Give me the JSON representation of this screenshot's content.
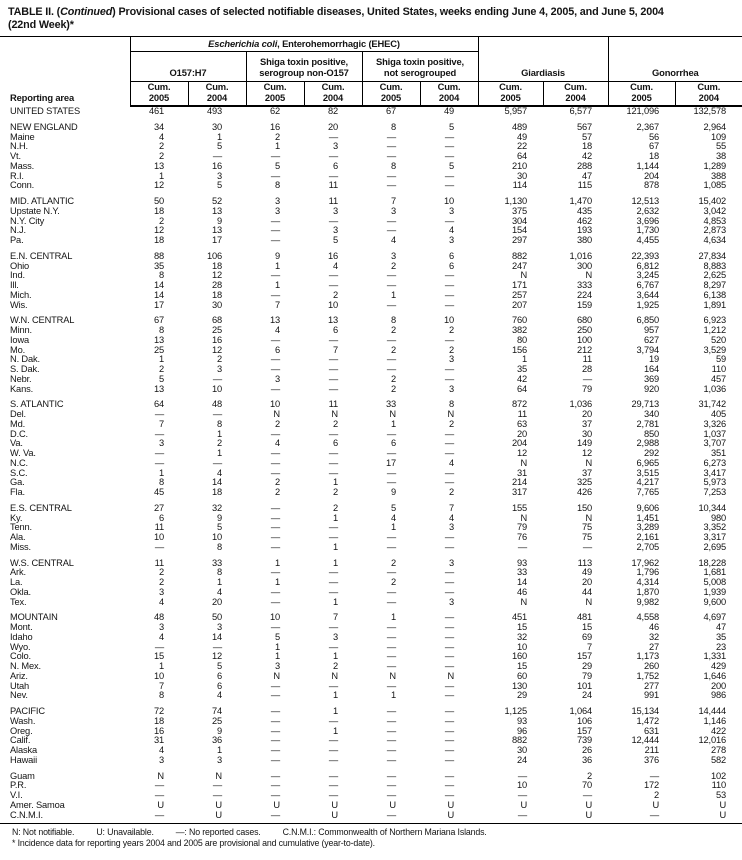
{
  "title": {
    "part1": "TABLE II. (",
    "part2": "Continued",
    "part3": ") Provisional cases of selected notifiable diseases, United States, weeks ending June 4, 2005, and June 5, 2004",
    "line2": "(22nd Week)*"
  },
  "header": {
    "reporting_area": "Reporting area",
    "ehec_italic": "Escherichia coli",
    "ehec_rest": ", Enterohemorrhagic (EHEC)",
    "groups": {
      "o157": "O157:H7",
      "shiga_non_o157": "Shiga toxin positive,\nserogroup non-O157",
      "shiga_not_serogrouped": "Shiga toxin positive,\nnot serogrouped",
      "giardiasis": "Giardiasis",
      "gonorrhea": "Gonorrhea"
    },
    "cum_2005": "Cum.\n2005",
    "cum_2004": "Cum.\n2004"
  },
  "rows": [
    {
      "area": "UNITED STATES",
      "section_start": false,
      "values": [
        "461",
        "493",
        "62",
        "82",
        "67",
        "49",
        "5,957",
        "6,577",
        "121,096",
        "132,578"
      ]
    },
    {
      "area": "NEW ENGLAND",
      "section_start": true,
      "values": [
        "34",
        "30",
        "16",
        "20",
        "8",
        "5",
        "489",
        "567",
        "2,367",
        "2,964"
      ]
    },
    {
      "area": "Maine",
      "section_start": false,
      "values": [
        "4",
        "1",
        "2",
        "—",
        "—",
        "—",
        "49",
        "57",
        "56",
        "109"
      ]
    },
    {
      "area": "N.H.",
      "section_start": false,
      "values": [
        "2",
        "5",
        "1",
        "3",
        "—",
        "—",
        "22",
        "18",
        "67",
        "55"
      ]
    },
    {
      "area": "Vt.",
      "section_start": false,
      "values": [
        "2",
        "—",
        "—",
        "—",
        "—",
        "—",
        "64",
        "42",
        "18",
        "38"
      ]
    },
    {
      "area": "Mass.",
      "section_start": false,
      "values": [
        "13",
        "16",
        "5",
        "6",
        "8",
        "5",
        "210",
        "288",
        "1,144",
        "1,289"
      ]
    },
    {
      "area": "R.I.",
      "section_start": false,
      "values": [
        "1",
        "3",
        "—",
        "—",
        "—",
        "—",
        "30",
        "47",
        "204",
        "388"
      ]
    },
    {
      "area": "Conn.",
      "section_start": false,
      "values": [
        "12",
        "5",
        "8",
        "11",
        "—",
        "—",
        "114",
        "115",
        "878",
        "1,085"
      ]
    },
    {
      "area": "MID. ATLANTIC",
      "section_start": true,
      "values": [
        "50",
        "52",
        "3",
        "11",
        "7",
        "10",
        "1,130",
        "1,470",
        "12,513",
        "15,402"
      ]
    },
    {
      "area": "Upstate N.Y.",
      "section_start": false,
      "values": [
        "18",
        "13",
        "3",
        "3",
        "3",
        "3",
        "375",
        "435",
        "2,632",
        "3,042"
      ]
    },
    {
      "area": "N.Y. City",
      "section_start": false,
      "values": [
        "2",
        "9",
        "—",
        "—",
        "—",
        "—",
        "304",
        "462",
        "3,696",
        "4,853"
      ]
    },
    {
      "area": "N.J.",
      "section_start": false,
      "values": [
        "12",
        "13",
        "—",
        "3",
        "—",
        "4",
        "154",
        "193",
        "1,730",
        "2,873"
      ]
    },
    {
      "area": "Pa.",
      "section_start": false,
      "values": [
        "18",
        "17",
        "—",
        "5",
        "4",
        "3",
        "297",
        "380",
        "4,455",
        "4,634"
      ]
    },
    {
      "area": "E.N. CENTRAL",
      "section_start": true,
      "values": [
        "88",
        "106",
        "9",
        "16",
        "3",
        "6",
        "882",
        "1,016",
        "22,393",
        "27,834"
      ]
    },
    {
      "area": "Ohio",
      "section_start": false,
      "values": [
        "35",
        "18",
        "1",
        "4",
        "2",
        "6",
        "247",
        "300",
        "6,812",
        "8,883"
      ]
    },
    {
      "area": "Ind.",
      "section_start": false,
      "values": [
        "8",
        "12",
        "—",
        "—",
        "—",
        "—",
        "N",
        "N",
        "3,245",
        "2,625"
      ]
    },
    {
      "area": "Ill.",
      "section_start": false,
      "values": [
        "14",
        "28",
        "1",
        "—",
        "—",
        "—",
        "171",
        "333",
        "6,767",
        "8,297"
      ]
    },
    {
      "area": "Mich.",
      "section_start": false,
      "values": [
        "14",
        "18",
        "—",
        "2",
        "1",
        "—",
        "257",
        "224",
        "3,644",
        "6,138"
      ]
    },
    {
      "area": "Wis.",
      "section_start": false,
      "values": [
        "17",
        "30",
        "7",
        "10",
        "—",
        "—",
        "207",
        "159",
        "1,925",
        "1,891"
      ]
    },
    {
      "area": "W.N. CENTRAL",
      "section_start": true,
      "values": [
        "67",
        "68",
        "13",
        "13",
        "8",
        "10",
        "760",
        "680",
        "6,850",
        "6,923"
      ]
    },
    {
      "area": "Minn.",
      "section_start": false,
      "values": [
        "8",
        "25",
        "4",
        "6",
        "2",
        "2",
        "382",
        "250",
        "957",
        "1,212"
      ]
    },
    {
      "area": "Iowa",
      "section_start": false,
      "values": [
        "13",
        "16",
        "—",
        "—",
        "—",
        "—",
        "80",
        "100",
        "627",
        "520"
      ]
    },
    {
      "area": "Mo.",
      "section_start": false,
      "values": [
        "25",
        "12",
        "6",
        "7",
        "2",
        "2",
        "156",
        "212",
        "3,794",
        "3,529"
      ]
    },
    {
      "area": "N. Dak.",
      "section_start": false,
      "values": [
        "1",
        "2",
        "—",
        "—",
        "—",
        "3",
        "1",
        "11",
        "19",
        "59"
      ]
    },
    {
      "area": "S. Dak.",
      "section_start": false,
      "values": [
        "2",
        "3",
        "—",
        "—",
        "—",
        "—",
        "35",
        "28",
        "164",
        "110"
      ]
    },
    {
      "area": "Nebr.",
      "section_start": false,
      "values": [
        "5",
        "—",
        "3",
        "—",
        "2",
        "—",
        "42",
        "—",
        "369",
        "457"
      ]
    },
    {
      "area": "Kans.",
      "section_start": false,
      "values": [
        "13",
        "10",
        "—",
        "—",
        "2",
        "3",
        "64",
        "79",
        "920",
        "1,036"
      ]
    },
    {
      "area": "S. ATLANTIC",
      "section_start": true,
      "values": [
        "64",
        "48",
        "10",
        "11",
        "33",
        "8",
        "872",
        "1,036",
        "29,713",
        "31,742"
      ]
    },
    {
      "area": "Del.",
      "section_start": false,
      "values": [
        "—",
        "—",
        "N",
        "N",
        "N",
        "N",
        "11",
        "20",
        "340",
        "405"
      ]
    },
    {
      "area": "Md.",
      "section_start": false,
      "values": [
        "7",
        "8",
        "2",
        "2",
        "1",
        "2",
        "63",
        "37",
        "2,781",
        "3,326"
      ]
    },
    {
      "area": "D.C.",
      "section_start": false,
      "values": [
        "—",
        "1",
        "—",
        "—",
        "—",
        "—",
        "20",
        "30",
        "850",
        "1,037"
      ]
    },
    {
      "area": "Va.",
      "section_start": false,
      "values": [
        "3",
        "2",
        "4",
        "6",
        "6",
        "—",
        "204",
        "149",
        "2,988",
        "3,707"
      ]
    },
    {
      "area": "W. Va.",
      "section_start": false,
      "values": [
        "—",
        "1",
        "—",
        "—",
        "—",
        "—",
        "12",
        "12",
        "292",
        "351"
      ]
    },
    {
      "area": "N.C.",
      "section_start": false,
      "values": [
        "—",
        "—",
        "—",
        "—",
        "17",
        "4",
        "N",
        "N",
        "6,965",
        "6,273"
      ]
    },
    {
      "area": "S.C.",
      "section_start": false,
      "values": [
        "1",
        "4",
        "—",
        "—",
        "—",
        "—",
        "31",
        "37",
        "3,515",
        "3,417"
      ]
    },
    {
      "area": "Ga.",
      "section_start": false,
      "values": [
        "8",
        "14",
        "2",
        "1",
        "—",
        "—",
        "214",
        "325",
        "4,217",
        "5,973"
      ]
    },
    {
      "area": "Fla.",
      "section_start": false,
      "values": [
        "45",
        "18",
        "2",
        "2",
        "9",
        "2",
        "317",
        "426",
        "7,765",
        "7,253"
      ]
    },
    {
      "area": "E.S. CENTRAL",
      "section_start": true,
      "values": [
        "27",
        "32",
        "—",
        "2",
        "5",
        "7",
        "155",
        "150",
        "9,606",
        "10,344"
      ]
    },
    {
      "area": "Ky.",
      "section_start": false,
      "values": [
        "6",
        "9",
        "—",
        "1",
        "4",
        "4",
        "N",
        "N",
        "1,451",
        "980"
      ]
    },
    {
      "area": "Tenn.",
      "section_start": false,
      "values": [
        "11",
        "5",
        "—",
        "—",
        "1",
        "3",
        "79",
        "75",
        "3,289",
        "3,352"
      ]
    },
    {
      "area": "Ala.",
      "section_start": false,
      "values": [
        "10",
        "10",
        "—",
        "—",
        "—",
        "—",
        "76",
        "75",
        "2,161",
        "3,317"
      ]
    },
    {
      "area": "Miss.",
      "section_start": false,
      "values": [
        "—",
        "8",
        "—",
        "1",
        "—",
        "—",
        "—",
        "—",
        "2,705",
        "2,695"
      ]
    },
    {
      "area": "W.S. CENTRAL",
      "section_start": true,
      "values": [
        "11",
        "33",
        "1",
        "1",
        "2",
        "3",
        "93",
        "113",
        "17,962",
        "18,228"
      ]
    },
    {
      "area": "Ark.",
      "section_start": false,
      "values": [
        "2",
        "8",
        "—",
        "—",
        "—",
        "—",
        "33",
        "49",
        "1,796",
        "1,681"
      ]
    },
    {
      "area": "La.",
      "section_start": false,
      "values": [
        "2",
        "1",
        "1",
        "—",
        "2",
        "—",
        "14",
        "20",
        "4,314",
        "5,008"
      ]
    },
    {
      "area": "Okla.",
      "section_start": false,
      "values": [
        "3",
        "4",
        "—",
        "—",
        "—",
        "—",
        "46",
        "44",
        "1,870",
        "1,939"
      ]
    },
    {
      "area": "Tex.",
      "section_start": false,
      "values": [
        "4",
        "20",
        "—",
        "1",
        "—",
        "3",
        "N",
        "N",
        "9,982",
        "9,600"
      ]
    },
    {
      "area": "MOUNTAIN",
      "section_start": true,
      "values": [
        "48",
        "50",
        "10",
        "7",
        "1",
        "—",
        "451",
        "481",
        "4,558",
        "4,697"
      ]
    },
    {
      "area": "Mont.",
      "section_start": false,
      "values": [
        "3",
        "3",
        "—",
        "—",
        "—",
        "—",
        "15",
        "15",
        "46",
        "47"
      ]
    },
    {
      "area": "Idaho",
      "section_start": false,
      "values": [
        "4",
        "14",
        "5",
        "3",
        "—",
        "—",
        "32",
        "69",
        "32",
        "35"
      ]
    },
    {
      "area": "Wyo.",
      "section_start": false,
      "values": [
        "—",
        "—",
        "1",
        "—",
        "—",
        "—",
        "10",
        "7",
        "27",
        "23"
      ]
    },
    {
      "area": "Colo.",
      "section_start": false,
      "values": [
        "15",
        "12",
        "1",
        "1",
        "—",
        "—",
        "160",
        "157",
        "1,173",
        "1,331"
      ]
    },
    {
      "area": "N. Mex.",
      "section_start": false,
      "values": [
        "1",
        "5",
        "3",
        "2",
        "—",
        "—",
        "15",
        "29",
        "260",
        "429"
      ]
    },
    {
      "area": "Ariz.",
      "section_start": false,
      "values": [
        "10",
        "6",
        "N",
        "N",
        "N",
        "N",
        "60",
        "79",
        "1,752",
        "1,646"
      ]
    },
    {
      "area": "Utah",
      "section_start": false,
      "values": [
        "7",
        "6",
        "—",
        "—",
        "—",
        "—",
        "130",
        "101",
        "277",
        "200"
      ]
    },
    {
      "area": "Nev.",
      "section_start": false,
      "values": [
        "8",
        "4",
        "—",
        "1",
        "1",
        "—",
        "29",
        "24",
        "991",
        "986"
      ]
    },
    {
      "area": "PACIFIC",
      "section_start": true,
      "values": [
        "72",
        "74",
        "—",
        "1",
        "—",
        "—",
        "1,125",
        "1,064",
        "15,134",
        "14,444"
      ]
    },
    {
      "area": "Wash.",
      "section_start": false,
      "values": [
        "18",
        "25",
        "—",
        "—",
        "—",
        "—",
        "93",
        "106",
        "1,472",
        "1,146"
      ]
    },
    {
      "area": "Oreg.",
      "section_start": false,
      "values": [
        "16",
        "9",
        "—",
        "1",
        "—",
        "—",
        "96",
        "157",
        "631",
        "422"
      ]
    },
    {
      "area": "Calif.",
      "section_start": false,
      "values": [
        "31",
        "36",
        "—",
        "—",
        "—",
        "—",
        "882",
        "739",
        "12,444",
        "12,016"
      ]
    },
    {
      "area": "Alaska",
      "section_start": false,
      "values": [
        "4",
        "1",
        "—",
        "—",
        "—",
        "—",
        "30",
        "26",
        "211",
        "278"
      ]
    },
    {
      "area": "Hawaii",
      "section_start": false,
      "values": [
        "3",
        "3",
        "—",
        "—",
        "—",
        "—",
        "24",
        "36",
        "376",
        "582"
      ]
    },
    {
      "area": "Guam",
      "section_start": true,
      "values": [
        "N",
        "N",
        "—",
        "—",
        "—",
        "—",
        "—",
        "2",
        "—",
        "102"
      ]
    },
    {
      "area": "P.R.",
      "section_start": false,
      "values": [
        "—",
        "—",
        "—",
        "—",
        "—",
        "—",
        "10",
        "70",
        "172",
        "110"
      ]
    },
    {
      "area": "V.I.",
      "section_start": false,
      "values": [
        "—",
        "—",
        "—",
        "—",
        "—",
        "—",
        "—",
        "—",
        "2",
        "53"
      ]
    },
    {
      "area": "Amer. Samoa",
      "section_start": false,
      "values": [
        "U",
        "U",
        "U",
        "U",
        "U",
        "U",
        "U",
        "U",
        "U",
        "U"
      ]
    },
    {
      "area": "C.N.M.I.",
      "section_start": false,
      "values": [
        "—",
        "U",
        "—",
        "U",
        "—",
        "U",
        "—",
        "U",
        "—",
        "U"
      ]
    }
  ],
  "footnotes": {
    "legend": [
      "N: Not notifiable.",
      "U: Unavailable.",
      "—: No reported cases.",
      "C.N.M.I.: Commonwealth of Northern Mariana Islands."
    ],
    "incidence": "* Incidence data for reporting years 2004 and 2005 are provisional and cumulative (year-to-date)."
  }
}
